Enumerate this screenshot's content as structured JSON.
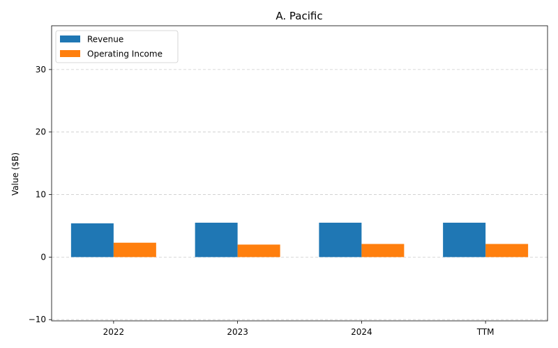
{
  "chart_data": {
    "type": "bar",
    "title": "A. Pacific",
    "xlabel": "",
    "ylabel": "Value ($B)",
    "categories": [
      "2022",
      "2023",
      "2024",
      "TTM"
    ],
    "series": [
      {
        "name": "Revenue",
        "color": "#1f77b4",
        "values": [
          5.4,
          5.5,
          5.5,
          5.5
        ]
      },
      {
        "name": "Operating Income",
        "color": "#ff7f0e",
        "values": [
          2.3,
          2.0,
          2.1,
          2.1
        ]
      }
    ],
    "ylim": [
      -10.2,
      37
    ],
    "yticks": [
      -10,
      0,
      10,
      20,
      30
    ],
    "grid": true,
    "grid_style": "dashed",
    "legend_position": "upper-left"
  }
}
